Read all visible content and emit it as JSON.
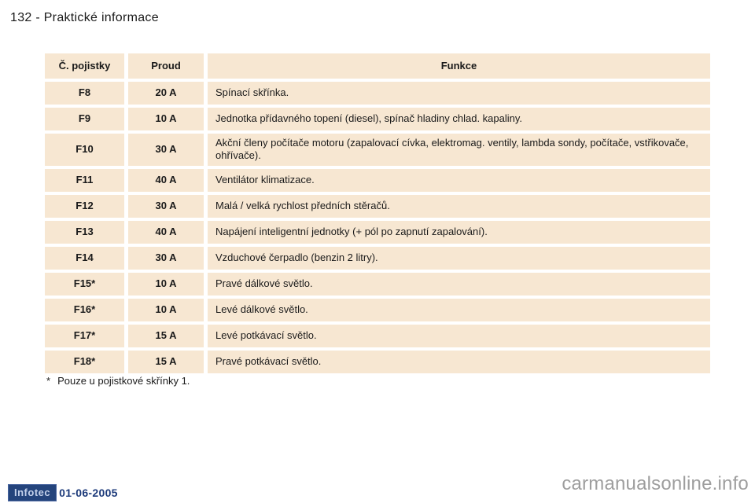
{
  "header": {
    "title": "132 - Praktické informace"
  },
  "table": {
    "headers": [
      "Č. pojistky",
      "Proud",
      "Funkce"
    ],
    "rows": [
      {
        "fuse": "F8",
        "amp": "20 A",
        "func": "Spínací skřínka."
      },
      {
        "fuse": "F9",
        "amp": "10 A",
        "func": "Jednotka přídavného topení (diesel), spínač hladiny chlad. kapaliny."
      },
      {
        "fuse": "F10",
        "amp": "30 A",
        "func": "Akční členy počítače motoru (zapalovací cívka, elektromag. ventily, lambda sondy, počítače, vstřikovače, ohřívače)."
      },
      {
        "fuse": "F11",
        "amp": "40 A",
        "func": "Ventilátor klimatizace."
      },
      {
        "fuse": "F12",
        "amp": "30 A",
        "func": "Malá / velká rychlost předních stěračů."
      },
      {
        "fuse": "F13",
        "amp": "40 A",
        "func": "Napájení inteligentní jednotky (+ pól po zapnutí zapalování)."
      },
      {
        "fuse": "F14",
        "amp": "30 A",
        "func": "Vzduchové čerpadlo (benzin 2 litry)."
      },
      {
        "fuse": "F15*",
        "amp": "10 A",
        "func": "Pravé dálkové světlo."
      },
      {
        "fuse": "F16*",
        "amp": "10 A",
        "func": "Levé dálkové světlo."
      },
      {
        "fuse": "F17*",
        "amp": "15 A",
        "func": "Levé potkávací světlo."
      },
      {
        "fuse": "F18*",
        "amp": "15 A",
        "func": "Pravé potkávací světlo."
      }
    ]
  },
  "footnote": {
    "marker": "*",
    "text": "Pouze u pojistkové skřínky 1."
  },
  "footer": {
    "logo": "Infotec",
    "date": "01-06-2005",
    "watermark": "carmanualsonline.info"
  },
  "colors": {
    "cell_background": "#f7e7d2",
    "text": "#1a1a1a",
    "logo_background": "#24447c",
    "logo_text": "#c3d0ea",
    "date_text": "#1c3a7a",
    "watermark_text": "#9e9e9e"
  }
}
